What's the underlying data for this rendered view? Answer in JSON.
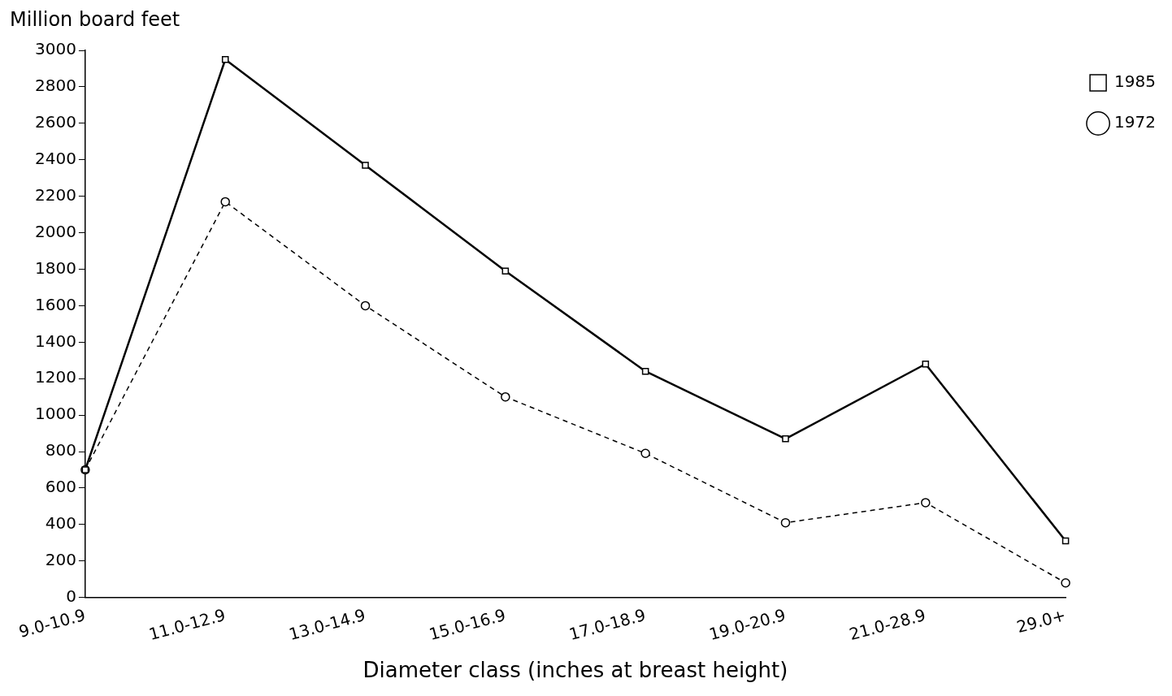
{
  "chart_data": {
    "type": "line",
    "ylabel": "Million board feet",
    "xlabel": "Diameter class (inches at breast height)",
    "categories": [
      "9.0-10.9",
      "11.0-12.9",
      "13.0-14.9",
      "15.0-16.9",
      "17.0-18.9",
      "19.0-20.9",
      "21.0-28.9",
      "29.0+"
    ],
    "series": [
      {
        "name": "1972",
        "color": "#000000",
        "marker": "circle",
        "line_style": "dashed",
        "values": [
          700,
          2170,
          1600,
          1100,
          790,
          410,
          520,
          80
        ]
      },
      {
        "name": "1985",
        "color": "#000000",
        "marker": "square",
        "line_style": "solid",
        "values": [
          700,
          2950,
          2370,
          1790,
          1240,
          870,
          1280,
          310
        ]
      }
    ],
    "ylim": [
      0,
      3000
    ],
    "yticks": [
      0,
      200,
      400,
      600,
      800,
      1000,
      1200,
      1400,
      1600,
      1800,
      2000,
      2200,
      2400,
      2600,
      2800,
      3000
    ],
    "grid": false,
    "legend": "right"
  }
}
